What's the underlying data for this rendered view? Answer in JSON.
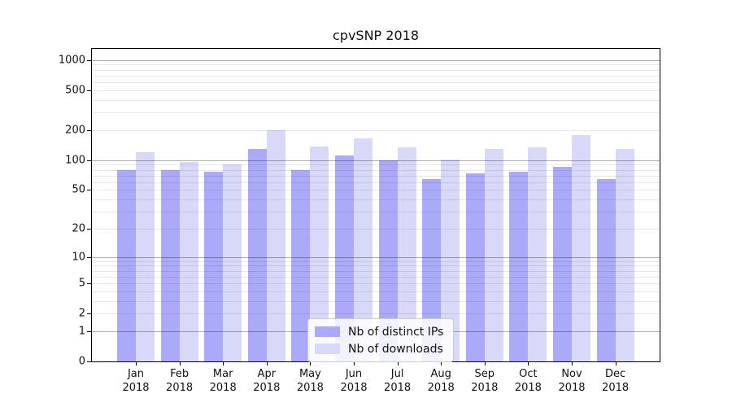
{
  "chart_data": {
    "type": "bar",
    "title": "cpvSNP 2018",
    "year": "2018",
    "months": [
      "Jan",
      "Feb",
      "Mar",
      "Apr",
      "May",
      "Jun",
      "Jul",
      "Aug",
      "Sep",
      "Oct",
      "Nov",
      "Dec"
    ],
    "categories": [
      "Jan 2018",
      "Feb 2018",
      "Mar 2018",
      "Apr 2018",
      "May 2018",
      "Jun 2018",
      "Jul 2018",
      "Aug 2018",
      "Sep 2018",
      "Oct 2018",
      "Nov 2018",
      "Dec 2018"
    ],
    "series": [
      {
        "name": "Nb of distinct IPs",
        "color": "#aaaaf8",
        "values": [
          79,
          79,
          76,
          130,
          80,
          111,
          100,
          64,
          74,
          76,
          86,
          64
        ]
      },
      {
        "name": "Nb of downloads",
        "color": "#d8d8f8",
        "values": [
          121,
          95,
          91,
          200,
          138,
          166,
          135,
          101,
          130,
          134,
          179,
          129
        ]
      }
    ],
    "y_axis": {
      "scale": "log1p",
      "range": [
        0,
        1000
      ],
      "ticks": [
        0,
        1,
        2,
        5,
        10,
        20,
        50,
        100,
        200,
        500,
        1000
      ],
      "major_gridlines": [
        1,
        10,
        100,
        1000
      ]
    },
    "grid": {
      "minor_color": "rgba(0,0,0,0.09)",
      "major_color": "rgba(0,0,0,0.32)"
    },
    "legend_position": "bottom-center"
  }
}
